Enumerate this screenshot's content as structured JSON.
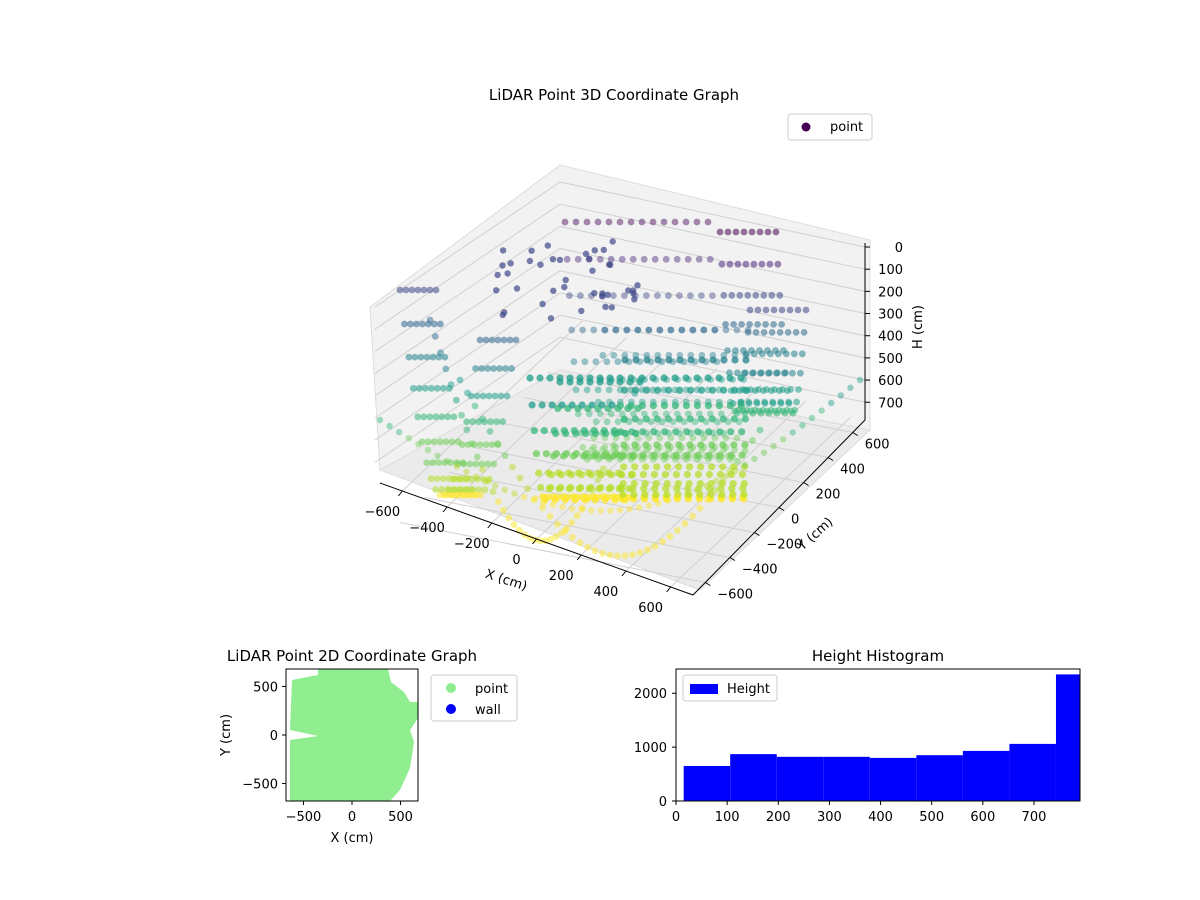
{
  "chart_data": [
    {
      "type": "scatter",
      "projection": "3d",
      "title": "LiDAR Point 3D Coordinate Graph",
      "xlabel": "X (cm)",
      "ylabel": "Y (cm)",
      "zlabel": "H (cm)",
      "xlim": [
        -700,
        700
      ],
      "ylim": [
        -700,
        700
      ],
      "zlim": [
        0,
        780
      ],
      "z_inverted": true,
      "xticks": [
        -600,
        -400,
        -200,
        0,
        200,
        400,
        600
      ],
      "yticks": [
        -600,
        -400,
        -200,
        0,
        200,
        400,
        600
      ],
      "zticks": [
        0,
        100,
        200,
        300,
        400,
        500,
        600,
        700
      ],
      "colormap": "viridis",
      "color_by": "height",
      "legend": [
        {
          "label": "point",
          "color": "#440154"
        }
      ],
      "legend_placement": "top-right",
      "grid": true,
      "series": [
        {
          "name": "point",
          "description": "dense curved scan lines forming a bowl-shaped surface"
        }
      ]
    },
    {
      "type": "scatter",
      "title": "LiDAR Point 2D Coordinate Graph",
      "xlabel": "X (cm)",
      "ylabel": "Y (cm)",
      "xlim": [
        -680,
        680
      ],
      "ylim": [
        -680,
        680
      ],
      "xticks": [
        -500,
        0,
        500
      ],
      "yticks": [
        -500,
        0,
        500
      ],
      "legend": [
        {
          "label": "point",
          "color": "#90ee90"
        },
        {
          "label": "wall",
          "color": "#0000ff"
        }
      ],
      "legend_placement": "outside-right",
      "series": [
        {
          "name": "point",
          "color": "#90ee90"
        },
        {
          "name": "wall",
          "color": "#0000ff"
        }
      ]
    },
    {
      "type": "bar",
      "title": "Height Histogram",
      "xlim": [
        0,
        790
      ],
      "ylim": [
        0,
        2450
      ],
      "xticks": [
        0,
        100,
        200,
        300,
        400,
        500,
        600,
        700
      ],
      "yticks": [
        0,
        1000,
        2000
      ],
      "legend": [
        {
          "label": "Height",
          "color": "#0000ff"
        }
      ],
      "legend_placement": "top-left",
      "bin_edges": [
        15,
        106,
        197,
        288,
        379,
        470,
        561,
        652,
        743,
        790
      ],
      "series": [
        {
          "name": "Height",
          "color": "#0000ff",
          "values": [
            650,
            870,
            820,
            820,
            800,
            850,
            930,
            1060,
            2350
          ]
        }
      ]
    }
  ]
}
